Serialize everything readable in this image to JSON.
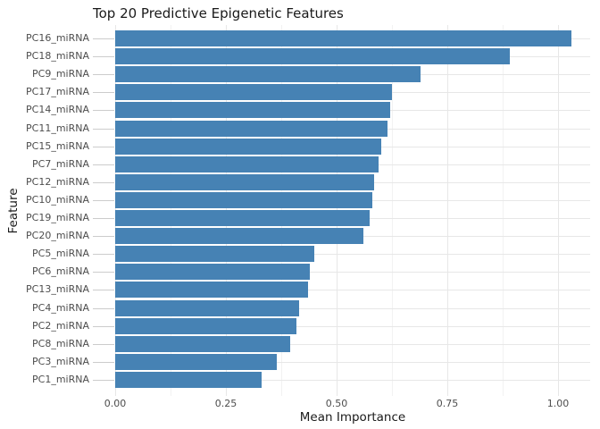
{
  "chart_data": {
    "type": "bar",
    "orientation": "horizontal",
    "title": "Top 20 Predictive Epigenetic Features",
    "xlabel": "Mean Importance",
    "ylabel": "Feature",
    "categories": [
      "PC16_miRNA",
      "PC18_miRNA",
      "PC9_miRNA",
      "PC17_miRNA",
      "PC14_miRNA",
      "PC11_miRNA",
      "PC15_miRNA",
      "PC7_miRNA",
      "PC12_miRNA",
      "PC10_miRNA",
      "PC19_miRNA",
      "PC20_miRNA",
      "PC5_miRNA",
      "PC6_miRNA",
      "PC13_miRNA",
      "PC4_miRNA",
      "PC2_miRNA",
      "PC8_miRNA",
      "PC3_miRNA",
      "PC1_miRNA"
    ],
    "values": [
      1.03,
      0.89,
      0.69,
      0.625,
      0.62,
      0.615,
      0.6,
      0.595,
      0.585,
      0.58,
      0.575,
      0.56,
      0.45,
      0.44,
      0.435,
      0.415,
      0.41,
      0.395,
      0.365,
      0.33
    ],
    "x_ticks": [
      0,
      0.25,
      0.5,
      0.75,
      1.0
    ],
    "x_tick_labels": [
      "0.00",
      "0.25",
      "0.50",
      "0.75",
      "1.00"
    ],
    "x_minor_ticks": [
      0.125,
      0.375,
      0.625,
      0.875
    ],
    "xlim": [
      0,
      1.072
    ],
    "grid": true,
    "legend": "none",
    "bar_color": "#4682b4",
    "major_grid_color": "#e7e7e7",
    "minor_grid_color": "#f2f2f2",
    "tick_mark_color": "#cccccc",
    "tick_label_color": "#4d4d4d",
    "text_color": "#1a1a1a",
    "background_color": "#ffffff"
  }
}
